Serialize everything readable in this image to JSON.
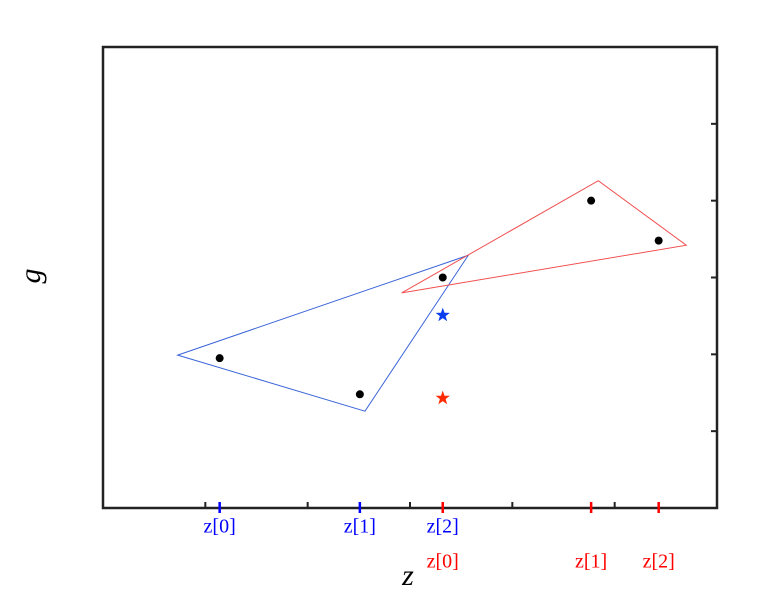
{
  "chart_data": {
    "type": "scatter",
    "xlabel": "z",
    "ylabel": "g",
    "xlim": [
      0,
      6
    ],
    "ylim": [
      0,
      6
    ],
    "xticks": [
      1,
      2,
      3,
      4,
      5
    ],
    "yticks": [
      1,
      2,
      3,
      4,
      5
    ],
    "tick_groups": [
      {
        "color": "#0000ff",
        "ticks": [
          {
            "value": 1.14,
            "label": "z[0]"
          },
          {
            "value": 2.51,
            "label": "z[1]"
          },
          {
            "value": 3.32,
            "label": "z[2]"
          }
        ]
      },
      {
        "color": "#ff0000",
        "ticks": [
          {
            "value": 3.32,
            "label": "z[0]"
          },
          {
            "value": 4.77,
            "label": "z[1]"
          },
          {
            "value": 5.43,
            "label": "z[2]"
          }
        ]
      }
    ],
    "series": [
      {
        "type": "polygon",
        "color": "#3a64d8",
        "x": [
          0.73,
          2.56,
          3.57
        ],
        "y": [
          1.99,
          1.26,
          3.29
        ]
      },
      {
        "type": "polygon",
        "color": "#f05050",
        "x": [
          2.92,
          4.84,
          5.7
        ],
        "y": [
          2.8,
          4.26,
          3.42
        ]
      },
      {
        "type": "scatter",
        "color": "#000000",
        "x": [
          1.14,
          2.51,
          3.32,
          4.77,
          5.43
        ],
        "y": [
          1.95,
          1.48,
          3.0,
          4.0,
          3.48
        ]
      },
      {
        "type": "star",
        "color": "#0a3cf0",
        "x": [
          3.32
        ],
        "y": [
          2.51
        ]
      },
      {
        "type": "star",
        "color": "#ff2a00",
        "x": [
          3.32
        ],
        "y": [
          1.43
        ]
      }
    ]
  }
}
